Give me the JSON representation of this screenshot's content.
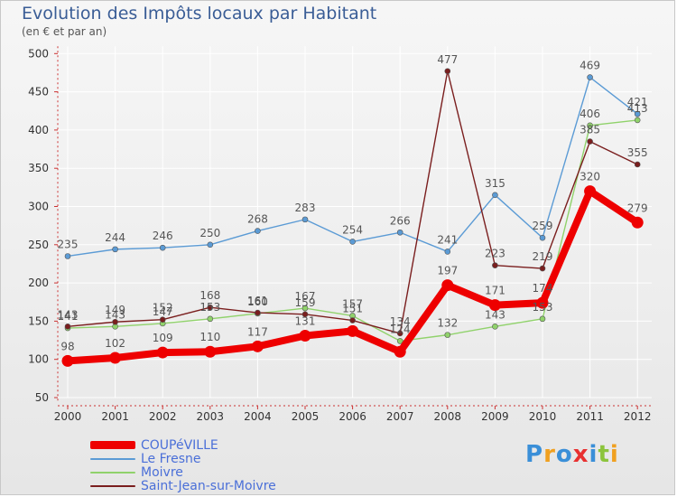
{
  "header": {
    "title": "Evolution des Impôts locaux par Habitant",
    "subtitle": "(en € et par an)"
  },
  "logo": {
    "text": "Proxiti",
    "letters": [
      {
        "ch": "P",
        "color": "#3a8fd8"
      },
      {
        "ch": "r",
        "color": "#f0a020"
      },
      {
        "ch": "o",
        "color": "#3a8fd8"
      },
      {
        "ch": "x",
        "color": "#e83030"
      },
      {
        "ch": "i",
        "color": "#3a8fd8"
      },
      {
        "ch": "t",
        "color": "#8cc43c"
      },
      {
        "ch": "i",
        "color": "#f0a020"
      }
    ]
  },
  "chart_data": {
    "type": "line",
    "title": "Evolution des Impôts locaux par Habitant",
    "subtitle": "(en € et par an)",
    "xlabel": "",
    "ylabel": "",
    "x": [
      "2000",
      "2001",
      "2002",
      "2003",
      "2004",
      "2005",
      "2006",
      "2007",
      "2008",
      "2009",
      "2010",
      "2011",
      "2012"
    ],
    "ylim": [
      50,
      500
    ],
    "yticks": [
      50,
      100,
      150,
      200,
      250,
      300,
      350,
      400,
      450,
      500
    ],
    "grid": true,
    "legend_position": "bottom-left",
    "series": [
      {
        "name": "COUPéVILLE",
        "color": "#ee0000",
        "emphasis": true,
        "values": [
          98,
          102,
          109,
          110,
          117,
          131,
          137,
          110,
          197,
          171,
          174,
          320,
          279
        ],
        "labels": [
          "98",
          "102",
          "109",
          "110",
          "117",
          "131",
          "",
          "",
          "197",
          "171",
          "174",
          "320",
          "279"
        ]
      },
      {
        "name": "Le Fresne",
        "color": "#5b9bd5",
        "values": [
          235,
          244,
          246,
          250,
          268,
          283,
          254,
          266,
          241,
          315,
          259,
          469,
          421
        ],
        "labels": [
          "235",
          "244",
          "246",
          "250",
          "268",
          "283",
          "254",
          "266",
          "241",
          "315",
          "259",
          "469",
          "421"
        ]
      },
      {
        "name": "Moivre",
        "color": "#90d26b",
        "values": [
          141,
          143,
          147,
          153,
          160,
          167,
          157,
          124,
          132,
          143,
          153,
          406,
          413
        ],
        "labels": [
          "141",
          "143",
          "147",
          "153",
          "160",
          "167",
          "157",
          "124",
          "132",
          "143",
          "153",
          "406",
          "413"
        ]
      },
      {
        "name": "Saint-Jean-sur-Moivre",
        "color": "#7a1e1e",
        "values": [
          143,
          149,
          152,
          168,
          161,
          159,
          151,
          134,
          477,
          223,
          219,
          385,
          355
        ],
        "labels": [
          "143",
          "149",
          "152",
          "168",
          "161",
          "159",
          "151",
          "134",
          "477",
          "223",
          "219",
          "385",
          "355"
        ]
      }
    ]
  }
}
